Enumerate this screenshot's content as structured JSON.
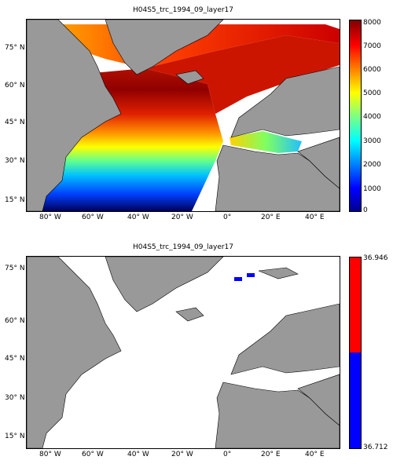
{
  "top_panel": {
    "title": "H04S5_trc_1994_09_layer17",
    "lat_labels": [
      "75° N",
      "60° N",
      "45° N",
      "30° N",
      "15° N"
    ],
    "lon_labels": [
      "80° W",
      "60° W",
      "40° W",
      "20° W",
      "0°",
      "20° E",
      "40° E"
    ],
    "colorbar_ticks": [
      "8000",
      "7000",
      "6000",
      "5000",
      "4000",
      "3000",
      "2000",
      "1000",
      "0"
    ],
    "colorbar_range": [
      0,
      8000
    ],
    "colormap": "jet"
  },
  "bottom_panel": {
    "title": "H04S5_trc_1994_09_layer17",
    "lat_labels": [
      "75° N",
      "60° N",
      "45° N",
      "30° N",
      "15° N"
    ],
    "lon_labels": [
      "80° W",
      "60° W",
      "40° W",
      "20° W",
      "0°",
      "20° E",
      "40° E"
    ],
    "colorbar_top": "36.946",
    "colorbar_bottom": "36.712",
    "colors": {
      "upper": "#ff0000",
      "lower": "#0000ff"
    }
  },
  "colors": {
    "land": "#999999",
    "missing": "#ffffff"
  }
}
